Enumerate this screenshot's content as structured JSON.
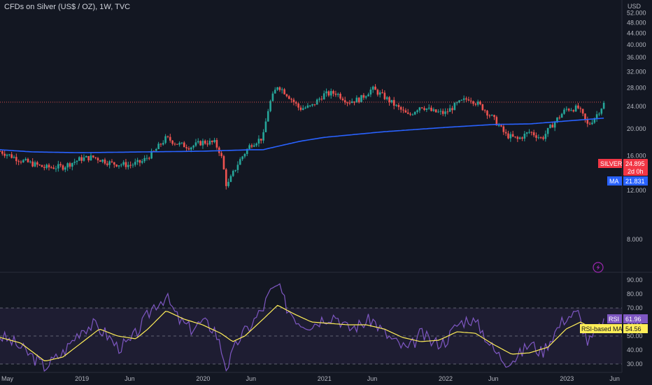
{
  "header": {
    "title": "CFDs on Silver (US$ / OZ), 1W, TVC",
    "currency": "USD"
  },
  "colors": {
    "background": "#131722",
    "up": "#26a69a",
    "down": "#ef5350",
    "ma": "#2962ff",
    "rsi": "#7e57c2",
    "rsi_ma": "#ffee58",
    "rsi_band": "#7e57c2",
    "label_red": "#f23645"
  },
  "price_labels": {
    "symbol": "SILVER",
    "price": "24.895",
    "countdown": "2d 0h",
    "ma_name": "MA",
    "ma_value": "21.831"
  },
  "rsi_labels": {
    "rsi_name": "RSI",
    "rsi_value": "61.96",
    "ma_name": "RSI-based MA",
    "ma_value": "54.56"
  },
  "icons": {
    "lightning": "lightning-icon"
  },
  "chart_data": [
    {
      "type": "candlestick",
      "title": "CFDs on Silver (US$ / OZ), 1W, TVC",
      "ylabel": "USD",
      "y_ticks": [
        8,
        12,
        16,
        20,
        24,
        28,
        32,
        36,
        40,
        44,
        48,
        52
      ],
      "y_tick_labels": [
        "8.000",
        "12.000",
        "16.000",
        "20.000",
        "24.000",
        "28.000",
        "32.000",
        "36.000",
        "40.000",
        "44.000",
        "48.000",
        "52.000"
      ],
      "x_labels": [
        "May",
        "2019",
        "Jun",
        "2020",
        "Jun",
        "2021",
        "Jun",
        "2022",
        "Jun",
        "2023",
        "Jun"
      ],
      "grid": false,
      "series": [
        {
          "name": "SILVER",
          "type": "candles",
          "last": 24.895,
          "close_path": [
            [
              2018.33,
              16.6
            ],
            [
              2018.5,
              15.4
            ],
            [
              2018.7,
              14.5
            ],
            [
              2018.85,
              14.6
            ],
            [
              2019.0,
              15.6
            ],
            [
              2019.1,
              15.8
            ],
            [
              2019.25,
              15.0
            ],
            [
              2019.4,
              14.8
            ],
            [
              2019.5,
              15.2
            ],
            [
              2019.6,
              16.5
            ],
            [
              2019.7,
              18.5
            ],
            [
              2019.8,
              17.6
            ],
            [
              2019.9,
              17.2
            ],
            [
              2020.0,
              17.9
            ],
            [
              2020.1,
              17.8
            ],
            [
              2020.15,
              16.3
            ],
            [
              2020.2,
              12.3
            ],
            [
              2020.3,
              15.2
            ],
            [
              2020.4,
              17.6
            ],
            [
              2020.5,
              18.6
            ],
            [
              2020.55,
              24.3
            ],
            [
              2020.62,
              28.6
            ],
            [
              2020.7,
              26.5
            ],
            [
              2020.8,
              23.6
            ],
            [
              2020.9,
              24.0
            ],
            [
              2021.0,
              26.5
            ],
            [
              2021.1,
              26.9
            ],
            [
              2021.2,
              25.0
            ],
            [
              2021.3,
              25.5
            ],
            [
              2021.4,
              27.8
            ],
            [
              2021.5,
              26.0
            ],
            [
              2021.6,
              24.0
            ],
            [
              2021.7,
              22.2
            ],
            [
              2021.8,
              24.2
            ],
            [
              2021.9,
              23.0
            ],
            [
              2022.0,
              22.7
            ],
            [
              2022.1,
              24.5
            ],
            [
              2022.2,
              25.8
            ],
            [
              2022.3,
              24.0
            ],
            [
              2022.4,
              21.7
            ],
            [
              2022.5,
              19.0
            ],
            [
              2022.6,
              18.3
            ],
            [
              2022.7,
              19.5
            ],
            [
              2022.8,
              18.4
            ],
            [
              2022.9,
              21.0
            ],
            [
              2023.0,
              23.5
            ],
            [
              2023.1,
              23.7
            ],
            [
              2023.18,
              20.5
            ],
            [
              2023.25,
              22.4
            ],
            [
              2023.32,
              24.9
            ]
          ]
        },
        {
          "name": "MA",
          "type": "line",
          "last": 21.831,
          "points": [
            [
              2018.33,
              16.8
            ],
            [
              2018.6,
              16.5
            ],
            [
              2019.0,
              16.4
            ],
            [
              2019.5,
              16.5
            ],
            [
              2020.0,
              16.6
            ],
            [
              2020.4,
              16.8
            ],
            [
              2020.5,
              16.8
            ],
            [
              2020.8,
              18.0
            ],
            [
              2021.0,
              18.6
            ],
            [
              2021.5,
              19.5
            ],
            [
              2022.0,
              20.2
            ],
            [
              2022.4,
              20.7
            ],
            [
              2022.7,
              20.8
            ],
            [
              2023.0,
              21.3
            ],
            [
              2023.32,
              21.83
            ]
          ]
        }
      ]
    },
    {
      "type": "line",
      "title": "RSI",
      "y_ticks": [
        30,
        40,
        50,
        60,
        70,
        80,
        90
      ],
      "y_tick_labels": [
        "30.00",
        "40.00",
        "50.00",
        "60.00",
        "70.00",
        "80.00",
        "90.00"
      ],
      "bands": [
        30,
        50,
        70
      ],
      "series": [
        {
          "name": "RSI",
          "last": 61.96,
          "points": [
            [
              2018.33,
              50
            ],
            [
              2018.45,
              45
            ],
            [
              2018.6,
              35
            ],
            [
              2018.7,
              28
            ],
            [
              2018.85,
              38
            ],
            [
              2019.0,
              55
            ],
            [
              2019.1,
              58
            ],
            [
              2019.2,
              52
            ],
            [
              2019.3,
              42
            ],
            [
              2019.4,
              45
            ],
            [
              2019.5,
              58
            ],
            [
              2019.6,
              72
            ],
            [
              2019.7,
              78
            ],
            [
              2019.8,
              62
            ],
            [
              2019.9,
              55
            ],
            [
              2020.0,
              60
            ],
            [
              2020.1,
              55
            ],
            [
              2020.15,
              42
            ],
            [
              2020.2,
              27
            ],
            [
              2020.3,
              48
            ],
            [
              2020.4,
              58
            ],
            [
              2020.5,
              70
            ],
            [
              2020.55,
              80
            ],
            [
              2020.62,
              86
            ],
            [
              2020.7,
              70
            ],
            [
              2020.8,
              60
            ],
            [
              2020.9,
              58
            ],
            [
              2021.0,
              63
            ],
            [
              2021.1,
              65
            ],
            [
              2021.2,
              55
            ],
            [
              2021.3,
              58
            ],
            [
              2021.4,
              62
            ],
            [
              2021.5,
              52
            ],
            [
              2021.6,
              45
            ],
            [
              2021.7,
              40
            ],
            [
              2021.8,
              52
            ],
            [
              2021.9,
              45
            ],
            [
              2022.0,
              46
            ],
            [
              2022.1,
              58
            ],
            [
              2022.2,
              63
            ],
            [
              2022.3,
              55
            ],
            [
              2022.4,
              40
            ],
            [
              2022.5,
              32
            ],
            [
              2022.6,
              35
            ],
            [
              2022.7,
              45
            ],
            [
              2022.8,
              38
            ],
            [
              2022.9,
              52
            ],
            [
              2023.0,
              64
            ],
            [
              2023.1,
              66
            ],
            [
              2023.18,
              45
            ],
            [
              2023.25,
              52
            ],
            [
              2023.32,
              61.96
            ]
          ]
        },
        {
          "name": "RSI-based MA",
          "last": 54.56,
          "points": [
            [
              2018.33,
              49
            ],
            [
              2018.5,
              45
            ],
            [
              2018.7,
              32
            ],
            [
              2018.85,
              35
            ],
            [
              2019.0,
              45
            ],
            [
              2019.15,
              55
            ],
            [
              2019.3,
              50
            ],
            [
              2019.45,
              48
            ],
            [
              2019.55,
              55
            ],
            [
              2019.7,
              68
            ],
            [
              2019.85,
              62
            ],
            [
              2020.0,
              58
            ],
            [
              2020.15,
              52
            ],
            [
              2020.25,
              46
            ],
            [
              2020.35,
              50
            ],
            [
              2020.5,
              62
            ],
            [
              2020.62,
              72
            ],
            [
              2020.75,
              66
            ],
            [
              2020.9,
              60
            ],
            [
              2021.05,
              59
            ],
            [
              2021.2,
              58
            ],
            [
              2021.35,
              58
            ],
            [
              2021.5,
              55
            ],
            [
              2021.65,
              49
            ],
            [
              2021.8,
              46
            ],
            [
              2021.95,
              47
            ],
            [
              2022.1,
              53
            ],
            [
              2022.25,
              52
            ],
            [
              2022.4,
              44
            ],
            [
              2022.55,
              37
            ],
            [
              2022.7,
              38
            ],
            [
              2022.85,
              42
            ],
            [
              2023.0,
              55
            ],
            [
              2023.12,
              60
            ],
            [
              2023.22,
              55
            ],
            [
              2023.32,
              54.56
            ]
          ]
        }
      ]
    }
  ]
}
